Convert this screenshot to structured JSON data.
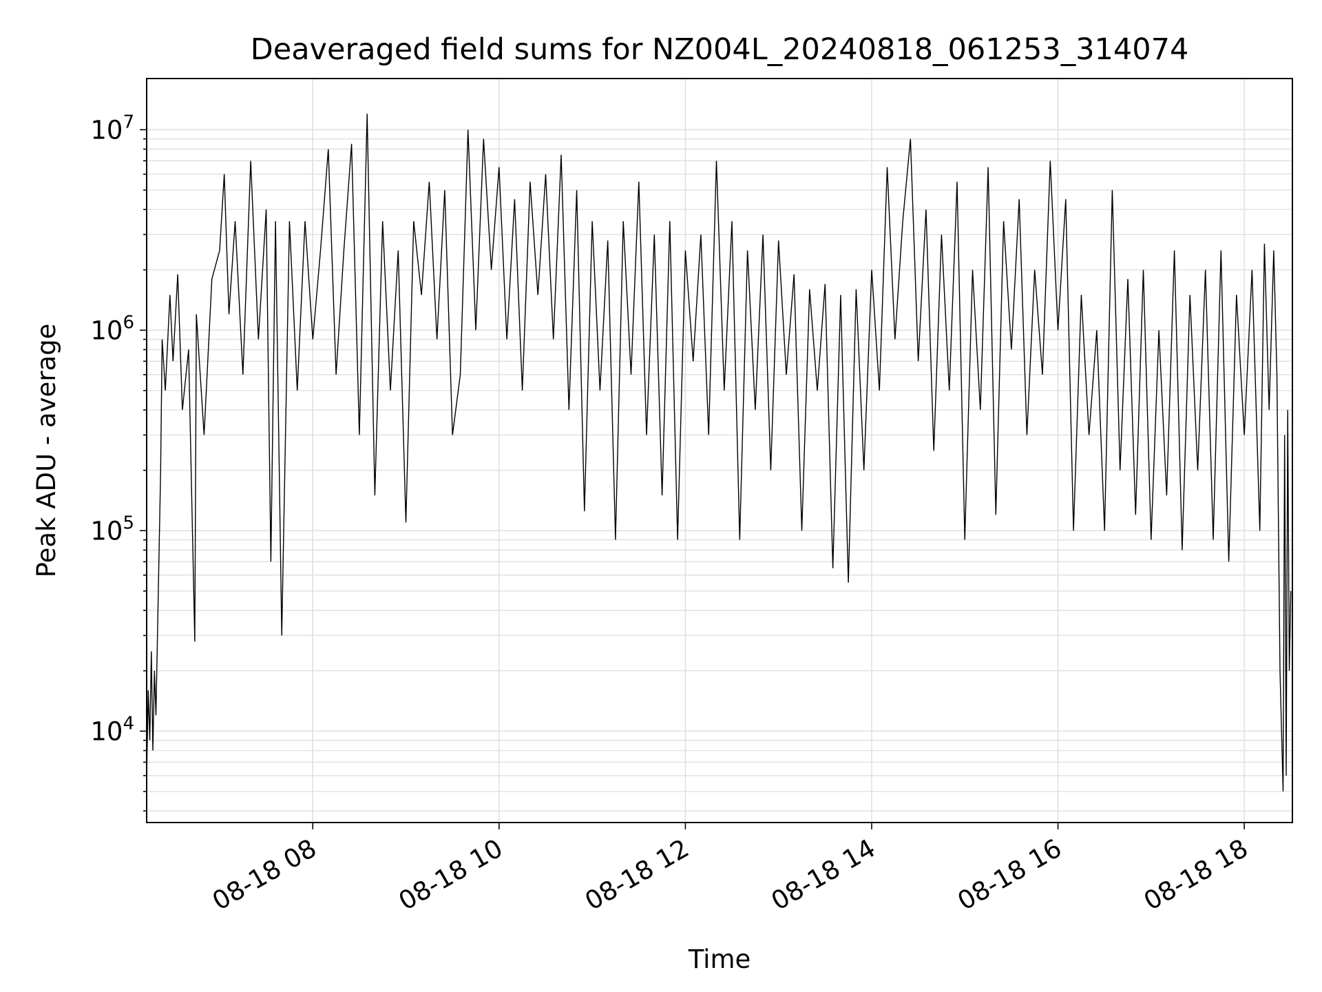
{
  "chart_data": {
    "type": "line",
    "title": "Deaveraged field sums for NZ004L_20240818_061253_314074",
    "xlabel": "Time",
    "ylabel": "Peak ADU - average",
    "y_scale": "log",
    "ylim": [
      3500,
      18000000
    ],
    "xlim": [
      "2024-08-18 06:13",
      "2024-08-18 18:31"
    ],
    "grid": true,
    "line_color": "#000000",
    "grid_color": "#e0e0e0",
    "x_ticks": [
      {
        "t": "2024-08-18 08:00",
        "label": "08-18 08"
      },
      {
        "t": "2024-08-18 10:00",
        "label": "08-18 10"
      },
      {
        "t": "2024-08-18 12:00",
        "label": "08-18 12"
      },
      {
        "t": "2024-08-18 14:00",
        "label": "08-18 14"
      },
      {
        "t": "2024-08-18 16:00",
        "label": "08-18 16"
      },
      {
        "t": "2024-08-18 18:00",
        "label": "08-18 18"
      }
    ],
    "y_ticks": [
      {
        "value": 10000,
        "base": "10",
        "exp": "4"
      },
      {
        "value": 100000,
        "base": "10",
        "exp": "5"
      },
      {
        "value": 1000000,
        "base": "10",
        "exp": "6"
      },
      {
        "value": 10000000,
        "base": "10",
        "exp": "7"
      }
    ],
    "series": [
      {
        "points": [
          [
            "06:13",
            6000
          ],
          [
            "06:14",
            16000
          ],
          [
            "06:15",
            9000
          ],
          [
            "06:16",
            25000
          ],
          [
            "06:17",
            8000
          ],
          [
            "06:18",
            20000
          ],
          [
            "06:19",
            12000
          ],
          [
            "06:22",
            200000
          ],
          [
            "06:23",
            900000
          ],
          [
            "06:25",
            500000
          ],
          [
            "06:28",
            1500000
          ],
          [
            "06:30",
            700000
          ],
          [
            "06:33",
            1900000
          ],
          [
            "06:36",
            400000
          ],
          [
            "06:40",
            800000
          ],
          [
            "06:44",
            28000
          ],
          [
            "06:45",
            1200000
          ],
          [
            "06:50",
            300000
          ],
          [
            "06:55",
            1800000
          ],
          [
            "07:00",
            2500000
          ],
          [
            "07:03",
            6000000
          ],
          [
            "07:06",
            1200000
          ],
          [
            "07:10",
            3500000
          ],
          [
            "07:15",
            600000
          ],
          [
            "07:20",
            7000000
          ],
          [
            "07:25",
            900000
          ],
          [
            "07:30",
            4000000
          ],
          [
            "07:33",
            70000
          ],
          [
            "07:36",
            3500000
          ],
          [
            "07:40",
            30000
          ],
          [
            "07:45",
            3500000
          ],
          [
            "07:50",
            500000
          ],
          [
            "07:55",
            3500000
          ],
          [
            "08:00",
            900000
          ],
          [
            "08:05",
            2500000
          ],
          [
            "08:10",
            8000000
          ],
          [
            "08:15",
            600000
          ],
          [
            "08:20",
            2500000
          ],
          [
            "08:25",
            8500000
          ],
          [
            "08:30",
            300000
          ],
          [
            "08:35",
            12000000
          ],
          [
            "08:40",
            150000
          ],
          [
            "08:45",
            3500000
          ],
          [
            "08:50",
            500000
          ],
          [
            "08:55",
            2500000
          ],
          [
            "09:00",
            110000
          ],
          [
            "09:05",
            3500000
          ],
          [
            "09:10",
            1500000
          ],
          [
            "09:15",
            5500000
          ],
          [
            "09:20",
            900000
          ],
          [
            "09:25",
            5000000
          ],
          [
            "09:30",
            300000
          ],
          [
            "09:35",
            600000
          ],
          [
            "09:40",
            10000000
          ],
          [
            "09:45",
            1000000
          ],
          [
            "09:50",
            9000000
          ],
          [
            "09:55",
            2000000
          ],
          [
            "10:00",
            6500000
          ],
          [
            "10:05",
            900000
          ],
          [
            "10:10",
            4500000
          ],
          [
            "10:15",
            500000
          ],
          [
            "10:20",
            5500000
          ],
          [
            "10:25",
            1500000
          ],
          [
            "10:30",
            6000000
          ],
          [
            "10:35",
            900000
          ],
          [
            "10:40",
            7500000
          ],
          [
            "10:45",
            400000
          ],
          [
            "10:50",
            5000000
          ],
          [
            "10:55",
            125000
          ],
          [
            "11:00",
            3500000
          ],
          [
            "11:05",
            500000
          ],
          [
            "11:10",
            2800000
          ],
          [
            "11:15",
            90000
          ],
          [
            "11:20",
            3500000
          ],
          [
            "11:25",
            600000
          ],
          [
            "11:30",
            5500000
          ],
          [
            "11:35",
            300000
          ],
          [
            "11:40",
            3000000
          ],
          [
            "11:45",
            150000
          ],
          [
            "11:50",
            3500000
          ],
          [
            "11:55",
            90000
          ],
          [
            "12:00",
            2500000
          ],
          [
            "12:05",
            700000
          ],
          [
            "12:10",
            3000000
          ],
          [
            "12:15",
            300000
          ],
          [
            "12:20",
            7000000
          ],
          [
            "12:25",
            500000
          ],
          [
            "12:30",
            3500000
          ],
          [
            "12:35",
            90000
          ],
          [
            "12:40",
            2500000
          ],
          [
            "12:45",
            400000
          ],
          [
            "12:50",
            3000000
          ],
          [
            "12:55",
            200000
          ],
          [
            "13:00",
            2800000
          ],
          [
            "13:05",
            600000
          ],
          [
            "13:10",
            1900000
          ],
          [
            "13:15",
            100000
          ],
          [
            "13:20",
            1600000
          ],
          [
            "13:25",
            500000
          ],
          [
            "13:30",
            1700000
          ],
          [
            "13:35",
            65000
          ],
          [
            "13:40",
            1500000
          ],
          [
            "13:45",
            55000
          ],
          [
            "13:50",
            1600000
          ],
          [
            "13:55",
            200000
          ],
          [
            "14:00",
            2000000
          ],
          [
            "14:05",
            500000
          ],
          [
            "14:10",
            6500000
          ],
          [
            "14:15",
            900000
          ],
          [
            "14:20",
            3500000
          ],
          [
            "14:25",
            9000000
          ],
          [
            "14:30",
            700000
          ],
          [
            "14:35",
            4000000
          ],
          [
            "14:40",
            250000
          ],
          [
            "14:45",
            3000000
          ],
          [
            "14:50",
            500000
          ],
          [
            "14:55",
            5500000
          ],
          [
            "15:00",
            90000
          ],
          [
            "15:05",
            2000000
          ],
          [
            "15:10",
            400000
          ],
          [
            "15:15",
            6500000
          ],
          [
            "15:20",
            120000
          ],
          [
            "15:25",
            3500000
          ],
          [
            "15:30",
            800000
          ],
          [
            "15:35",
            4500000
          ],
          [
            "15:40",
            300000
          ],
          [
            "15:45",
            2000000
          ],
          [
            "15:50",
            600000
          ],
          [
            "15:55",
            7000000
          ],
          [
            "16:00",
            1000000
          ],
          [
            "16:05",
            4500000
          ],
          [
            "16:10",
            100000
          ],
          [
            "16:15",
            1500000
          ],
          [
            "16:20",
            300000
          ],
          [
            "16:25",
            1000000
          ],
          [
            "16:30",
            100000
          ],
          [
            "16:35",
            5000000
          ],
          [
            "16:40",
            200000
          ],
          [
            "16:45",
            1800000
          ],
          [
            "16:50",
            120000
          ],
          [
            "16:55",
            2000000
          ],
          [
            "17:00",
            90000
          ],
          [
            "17:05",
            1000000
          ],
          [
            "17:10",
            150000
          ],
          [
            "17:15",
            2500000
          ],
          [
            "17:20",
            80000
          ],
          [
            "17:25",
            1500000
          ],
          [
            "17:30",
            200000
          ],
          [
            "17:35",
            2000000
          ],
          [
            "17:40",
            90000
          ],
          [
            "17:45",
            2500000
          ],
          [
            "17:50",
            70000
          ],
          [
            "17:55",
            1500000
          ],
          [
            "18:00",
            300000
          ],
          [
            "18:05",
            2000000
          ],
          [
            "18:10",
            100000
          ],
          [
            "18:13",
            2700000
          ],
          [
            "18:16",
            400000
          ],
          [
            "18:19",
            2500000
          ],
          [
            "18:21",
            600000
          ],
          [
            "18:23",
            20000
          ],
          [
            "18:25",
            5000
          ],
          [
            "18:26",
            300000
          ],
          [
            "18:27",
            6000
          ],
          [
            "18:28",
            400000
          ],
          [
            "18:29",
            20000
          ],
          [
            "18:30",
            50000
          ]
        ]
      }
    ]
  }
}
